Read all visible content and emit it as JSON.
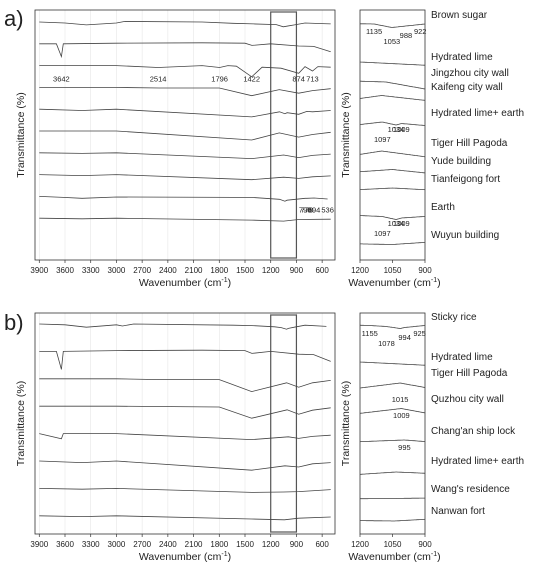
{
  "chart_data": [
    {
      "type": "line",
      "panel_label": "a)",
      "xlabel": "Wavenumber (cm",
      "xlabel_sup": "-1",
      "xlabel_tail": ")",
      "ylabel": "Transmittance (%)",
      "xlim": [
        3950,
        450
      ],
      "x_ticks": [
        3900,
        3600,
        3300,
        3000,
        2700,
        2400,
        2100,
        1800,
        1500,
        1200,
        900,
        600
      ],
      "highlight_box": [
        1200,
        900
      ],
      "peak_labels": [
        {
          "text": "3642",
          "x": 3642,
          "row": 2
        },
        {
          "text": "2514",
          "x": 2514,
          "row": 2
        },
        {
          "text": "1796",
          "x": 1796,
          "row": 2
        },
        {
          "text": "1422",
          "x": 1422,
          "row": 2
        },
        {
          "text": "874",
          "x": 874,
          "row": 2
        },
        {
          "text": "713",
          "x": 713,
          "row": 2
        },
        {
          "text": "778",
          "x": 778,
          "row": 8
        },
        {
          "text": "798",
          "x": 798,
          "row": 8
        },
        {
          "text": "694",
          "x": 694,
          "row": 8
        },
        {
          "text": "536",
          "x": 536,
          "row": 8
        }
      ],
      "series": [
        {
          "name": "Brown sugar",
          "values": [
            [
              3900,
              0.0
            ],
            [
              3600,
              -0.3
            ],
            [
              3350,
              -0.9
            ],
            [
              3000,
              -0.3
            ],
            [
              2900,
              0.2
            ],
            [
              2000,
              0.0
            ],
            [
              1640,
              -0.4
            ],
            [
              1400,
              -0.6
            ],
            [
              1135,
              -0.8
            ],
            [
              1053,
              -1.5
            ],
            [
              988,
              -1.2
            ],
            [
              922,
              -0.9
            ],
            [
              800,
              -0.3
            ],
            [
              600,
              -0.5
            ],
            [
              500,
              -0.6
            ]
          ]
        },
        {
          "name": "Hydrated lime",
          "values": [
            [
              3900,
              0.0
            ],
            [
              3700,
              0.0
            ],
            [
              3642,
              -4.0
            ],
            [
              3620,
              0.0
            ],
            [
              3000,
              0.2
            ],
            [
              2000,
              0.3
            ],
            [
              1500,
              0.2
            ],
            [
              1420,
              -0.5
            ],
            [
              1200,
              0.0
            ],
            [
              875,
              -0.7
            ],
            [
              700,
              -0.8
            ],
            [
              500,
              -2.5
            ]
          ]
        },
        {
          "name": "Jingzhou city wall",
          "values": [
            [
              3900,
              0.0
            ],
            [
              3000,
              0.0
            ],
            [
              2514,
              -0.6
            ],
            [
              2000,
              0.0
            ],
            [
              1796,
              -0.6
            ],
            [
              1700,
              0.0
            ],
            [
              1600,
              -0.2
            ],
            [
              1422,
              -3.5
            ],
            [
              1300,
              -0.5
            ],
            [
              1080,
              -0.8
            ],
            [
              874,
              -2.4
            ],
            [
              800,
              -0.3
            ],
            [
              713,
              -1.7
            ],
            [
              650,
              -0.3
            ],
            [
              500,
              -0.5
            ]
          ]
        },
        {
          "name": "Kaifeng city wall",
          "values": [
            [
              3900,
              0.0
            ],
            [
              3000,
              0.0
            ],
            [
              2500,
              -0.2
            ],
            [
              1800,
              -0.2
            ],
            [
              1422,
              -2.6
            ],
            [
              1100,
              -0.7
            ],
            [
              874,
              -1.8
            ],
            [
              713,
              -1.0
            ],
            [
              500,
              -0.4
            ]
          ]
        },
        {
          "name": "Hydrated lime+ earth",
          "values": [
            [
              3900,
              0.0
            ],
            [
              3400,
              -0.4
            ],
            [
              3000,
              0.0
            ],
            [
              1422,
              -2.4
            ],
            [
              1097,
              -0.8
            ],
            [
              1034,
              -1.4
            ],
            [
              1009,
              -1.1
            ],
            [
              874,
              -1.6
            ],
            [
              778,
              -0.7
            ],
            [
              713,
              -0.8
            ],
            [
              500,
              -0.4
            ]
          ]
        },
        {
          "name": "Tiger Hill Pagoda",
          "values": [
            [
              3900,
              0.0
            ],
            [
              3000,
              0.0
            ],
            [
              1422,
              -2.8
            ],
            [
              1100,
              -0.6
            ],
            [
              874,
              -1.9
            ],
            [
              713,
              -1.1
            ],
            [
              500,
              -0.4
            ]
          ]
        },
        {
          "name": "Yude building",
          "values": [
            [
              3900,
              0.0
            ],
            [
              3400,
              -0.2
            ],
            [
              3000,
              0.0
            ],
            [
              1422,
              -1.8
            ],
            [
              1050,
              -0.7
            ],
            [
              874,
              -1.5
            ],
            [
              713,
              -0.8
            ],
            [
              500,
              -0.4
            ]
          ]
        },
        {
          "name": "Tianfeigong fort",
          "values": [
            [
              3900,
              0.0
            ],
            [
              3400,
              -0.3
            ],
            [
              3000,
              0.0
            ],
            [
              1422,
              -1.6
            ],
            [
              1050,
              -0.8
            ],
            [
              874,
              -1.2
            ],
            [
              713,
              -0.7
            ],
            [
              500,
              -0.4
            ]
          ]
        },
        {
          "name": "Earth",
          "values": [
            [
              3900,
              0.0
            ],
            [
              3620,
              -0.3
            ],
            [
              3400,
              -0.6
            ],
            [
              3000,
              -0.2
            ],
            [
              1640,
              -0.3
            ],
            [
              1420,
              -0.3
            ],
            [
              1097,
              -0.9
            ],
            [
              1034,
              -1.5
            ],
            [
              1009,
              -1.2
            ],
            [
              798,
              -0.6
            ],
            [
              778,
              -0.6
            ],
            [
              694,
              -0.5
            ],
            [
              536,
              -0.8
            ]
          ]
        },
        {
          "name": "Wuyun building",
          "values": [
            [
              3900,
              0.0
            ],
            [
              3400,
              -0.2
            ],
            [
              3000,
              0.0
            ],
            [
              1422,
              -0.6
            ],
            [
              1050,
              -0.9
            ],
            [
              874,
              -0.4
            ],
            [
              500,
              -0.3
            ]
          ]
        }
      ],
      "inset": {
        "xlabel": "Wavenumber (cm",
        "xlabel_sup": "-1",
        "xlabel_tail": ")",
        "ylabel": "Transmittance (%)",
        "xlim": [
          1200,
          900
        ],
        "x_ticks": [
          1200,
          1050,
          900
        ],
        "peak_labels": [
          {
            "text": "1135",
            "x": 1135,
            "row": 0
          },
          {
            "text": "1053",
            "x": 1053,
            "row": 0
          },
          {
            "text": "988",
            "x": 988,
            "row": 0
          },
          {
            "text": "922",
            "x": 922,
            "row": 0
          },
          {
            "text": "1097",
            "x": 1097,
            "row": 4
          },
          {
            "text": "1034",
            "x": 1034,
            "row": 4
          },
          {
            "text": "1009",
            "x": 1009,
            "row": 4
          },
          {
            "text": "1097",
            "x": 1097,
            "row": 8
          },
          {
            "text": "1034",
            "x": 1034,
            "row": 8
          },
          {
            "text": "1009",
            "x": 1009,
            "row": 8
          }
        ]
      }
    },
    {
      "type": "line",
      "panel_label": "b)",
      "xlabel": "Wavenumber (cm",
      "xlabel_sup": "-1",
      "xlabel_tail": ")",
      "ylabel": "Transmittance (%)",
      "xlim": [
        3950,
        450
      ],
      "x_ticks": [
        3900,
        3600,
        3300,
        3000,
        2700,
        2400,
        2100,
        1800,
        1500,
        1200,
        900,
        600
      ],
      "highlight_box": [
        1200,
        900
      ],
      "peak_labels": [],
      "series": [
        {
          "name": "Sticky rice",
          "values": [
            [
              3900,
              0.0
            ],
            [
              3600,
              -0.2
            ],
            [
              3350,
              -0.8
            ],
            [
              3000,
              -0.2
            ],
            [
              2930,
              -0.5
            ],
            [
              2800,
              0.0
            ],
            [
              1640,
              -0.3
            ],
            [
              1420,
              -0.4
            ],
            [
              1155,
              -0.7
            ],
            [
              1078,
              -0.9
            ],
            [
              1015,
              -1.3
            ],
            [
              994,
              -1.1
            ],
            [
              925,
              -0.8
            ],
            [
              800,
              -0.3
            ],
            [
              550,
              -0.6
            ]
          ]
        },
        {
          "name": "Hydrated lime",
          "values": [
            [
              3900,
              0.0
            ],
            [
              3700,
              0.0
            ],
            [
              3642,
              -4.5
            ],
            [
              3620,
              0.0
            ],
            [
              3000,
              0.2
            ],
            [
              2000,
              0.3
            ],
            [
              1500,
              0.2
            ],
            [
              1420,
              -0.5
            ],
            [
              1200,
              0.0
            ],
            [
              875,
              -0.7
            ],
            [
              700,
              -0.8
            ],
            [
              500,
              -2.5
            ]
          ]
        },
        {
          "name": "Tiger Hill Pagoda",
          "values": [
            [
              3900,
              0.0
            ],
            [
              3000,
              0.0
            ],
            [
              2500,
              -0.2
            ],
            [
              1800,
              -0.2
            ],
            [
              1422,
              -3.2
            ],
            [
              1015,
              -1.0
            ],
            [
              874,
              -2.1
            ],
            [
              713,
              -1.0
            ],
            [
              500,
              -0.4
            ]
          ]
        },
        {
          "name": "Quzhou city wall",
          "values": [
            [
              3900,
              0.0
            ],
            [
              3000,
              0.0
            ],
            [
              1800,
              -0.2
            ],
            [
              1422,
              -3.0
            ],
            [
              1009,
              -0.9
            ],
            [
              874,
              -2.0
            ],
            [
              713,
              -1.0
            ],
            [
              500,
              -0.4
            ]
          ]
        },
        {
          "name": "Chang'an ship lock",
          "values": [
            [
              3900,
              0.0
            ],
            [
              3642,
              -1.3
            ],
            [
              3620,
              0.0
            ],
            [
              3000,
              0.0
            ],
            [
              1422,
              -1.5
            ],
            [
              995,
              -0.8
            ],
            [
              874,
              -1.2
            ],
            [
              713,
              -0.7
            ],
            [
              500,
              -0.4
            ]
          ]
        },
        {
          "name": "Hydrated lime+ earth",
          "values": [
            [
              3900,
              0.0
            ],
            [
              3400,
              -0.4
            ],
            [
              3000,
              0.0
            ],
            [
              1422,
              -2.3
            ],
            [
              1034,
              -1.2
            ],
            [
              874,
              -1.5
            ],
            [
              713,
              -0.7
            ],
            [
              500,
              -0.4
            ]
          ]
        },
        {
          "name": "Wang's residence",
          "values": [
            [
              3900,
              0.0
            ],
            [
              3400,
              -0.2
            ],
            [
              3000,
              0.0
            ],
            [
              1422,
              -1.0
            ],
            [
              1050,
              -0.9
            ],
            [
              874,
              -0.8
            ],
            [
              500,
              -0.3
            ]
          ]
        },
        {
          "name": "Nanwan fort",
          "values": [
            [
              3900,
              0.0
            ],
            [
              3400,
              -0.2
            ],
            [
              3000,
              0.0
            ],
            [
              1422,
              -0.8
            ],
            [
              1040,
              -1.0
            ],
            [
              874,
              -0.6
            ],
            [
              500,
              -0.3
            ]
          ]
        }
      ],
      "inset": {
        "xlabel": "Wavenumber (cm",
        "xlabel_sup": "-1",
        "xlabel_tail": ")",
        "ylabel": "Transmittance (%)",
        "xlim": [
          1200,
          900
        ],
        "x_ticks": [
          1200,
          1050,
          900
        ],
        "peak_labels": [
          {
            "text": "1155",
            "x": 1155,
            "row": 0
          },
          {
            "text": "1078",
            "x": 1078,
            "row": 0
          },
          {
            "text": "994",
            "x": 994,
            "row": 0
          },
          {
            "text": "925",
            "x": 925,
            "row": 0
          },
          {
            "text": "1015",
            "x": 1015,
            "row": 2
          },
          {
            "text": "1009",
            "x": 1009,
            "row": 3
          },
          {
            "text": "995",
            "x": 995,
            "row": 4
          }
        ]
      }
    }
  ]
}
